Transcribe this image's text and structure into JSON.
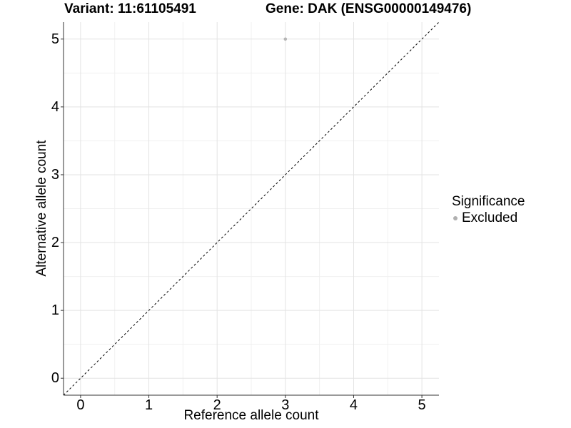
{
  "chart_data": {
    "type": "scatter",
    "titles": {
      "left": "Variant: 11:61105491",
      "right": "Gene: DAK (ENSG00000149476)"
    },
    "xlabel": "Reference allele count",
    "ylabel": "Alternative allele count",
    "xlim": [
      -0.25,
      5.25
    ],
    "ylim": [
      -0.25,
      5.25
    ],
    "xticks": [
      0,
      1,
      2,
      3,
      4,
      5
    ],
    "yticks": [
      0,
      1,
      2,
      3,
      4,
      5
    ],
    "minor_gridlines_x": [
      0.5,
      1.5,
      2.5,
      3.5,
      4.5
    ],
    "minor_gridlines_y": [
      0.5,
      1.5,
      2.5,
      3.5,
      4.5
    ],
    "grid": true,
    "series": [
      {
        "name": "Excluded",
        "marker": "circle",
        "color": "#b5b5b5",
        "points": [
          {
            "x": 3,
            "y": 5
          }
        ]
      }
    ],
    "reference_line": {
      "kind": "identity",
      "from": [
        -0.25,
        -0.25
      ],
      "to": [
        5.25,
        5.25
      ],
      "style": "dashed",
      "color": "#000000"
    },
    "legend": {
      "title": "Significance",
      "position": "right",
      "entries": [
        {
          "label": "Excluded",
          "color": "#b0b0b0",
          "marker": "circle"
        }
      ]
    },
    "colors": {
      "background": "#ffffff",
      "grid_major": "#e3e3e3",
      "grid_minor": "#f0f0f0",
      "axis": "#333333",
      "text": "#000000"
    }
  }
}
